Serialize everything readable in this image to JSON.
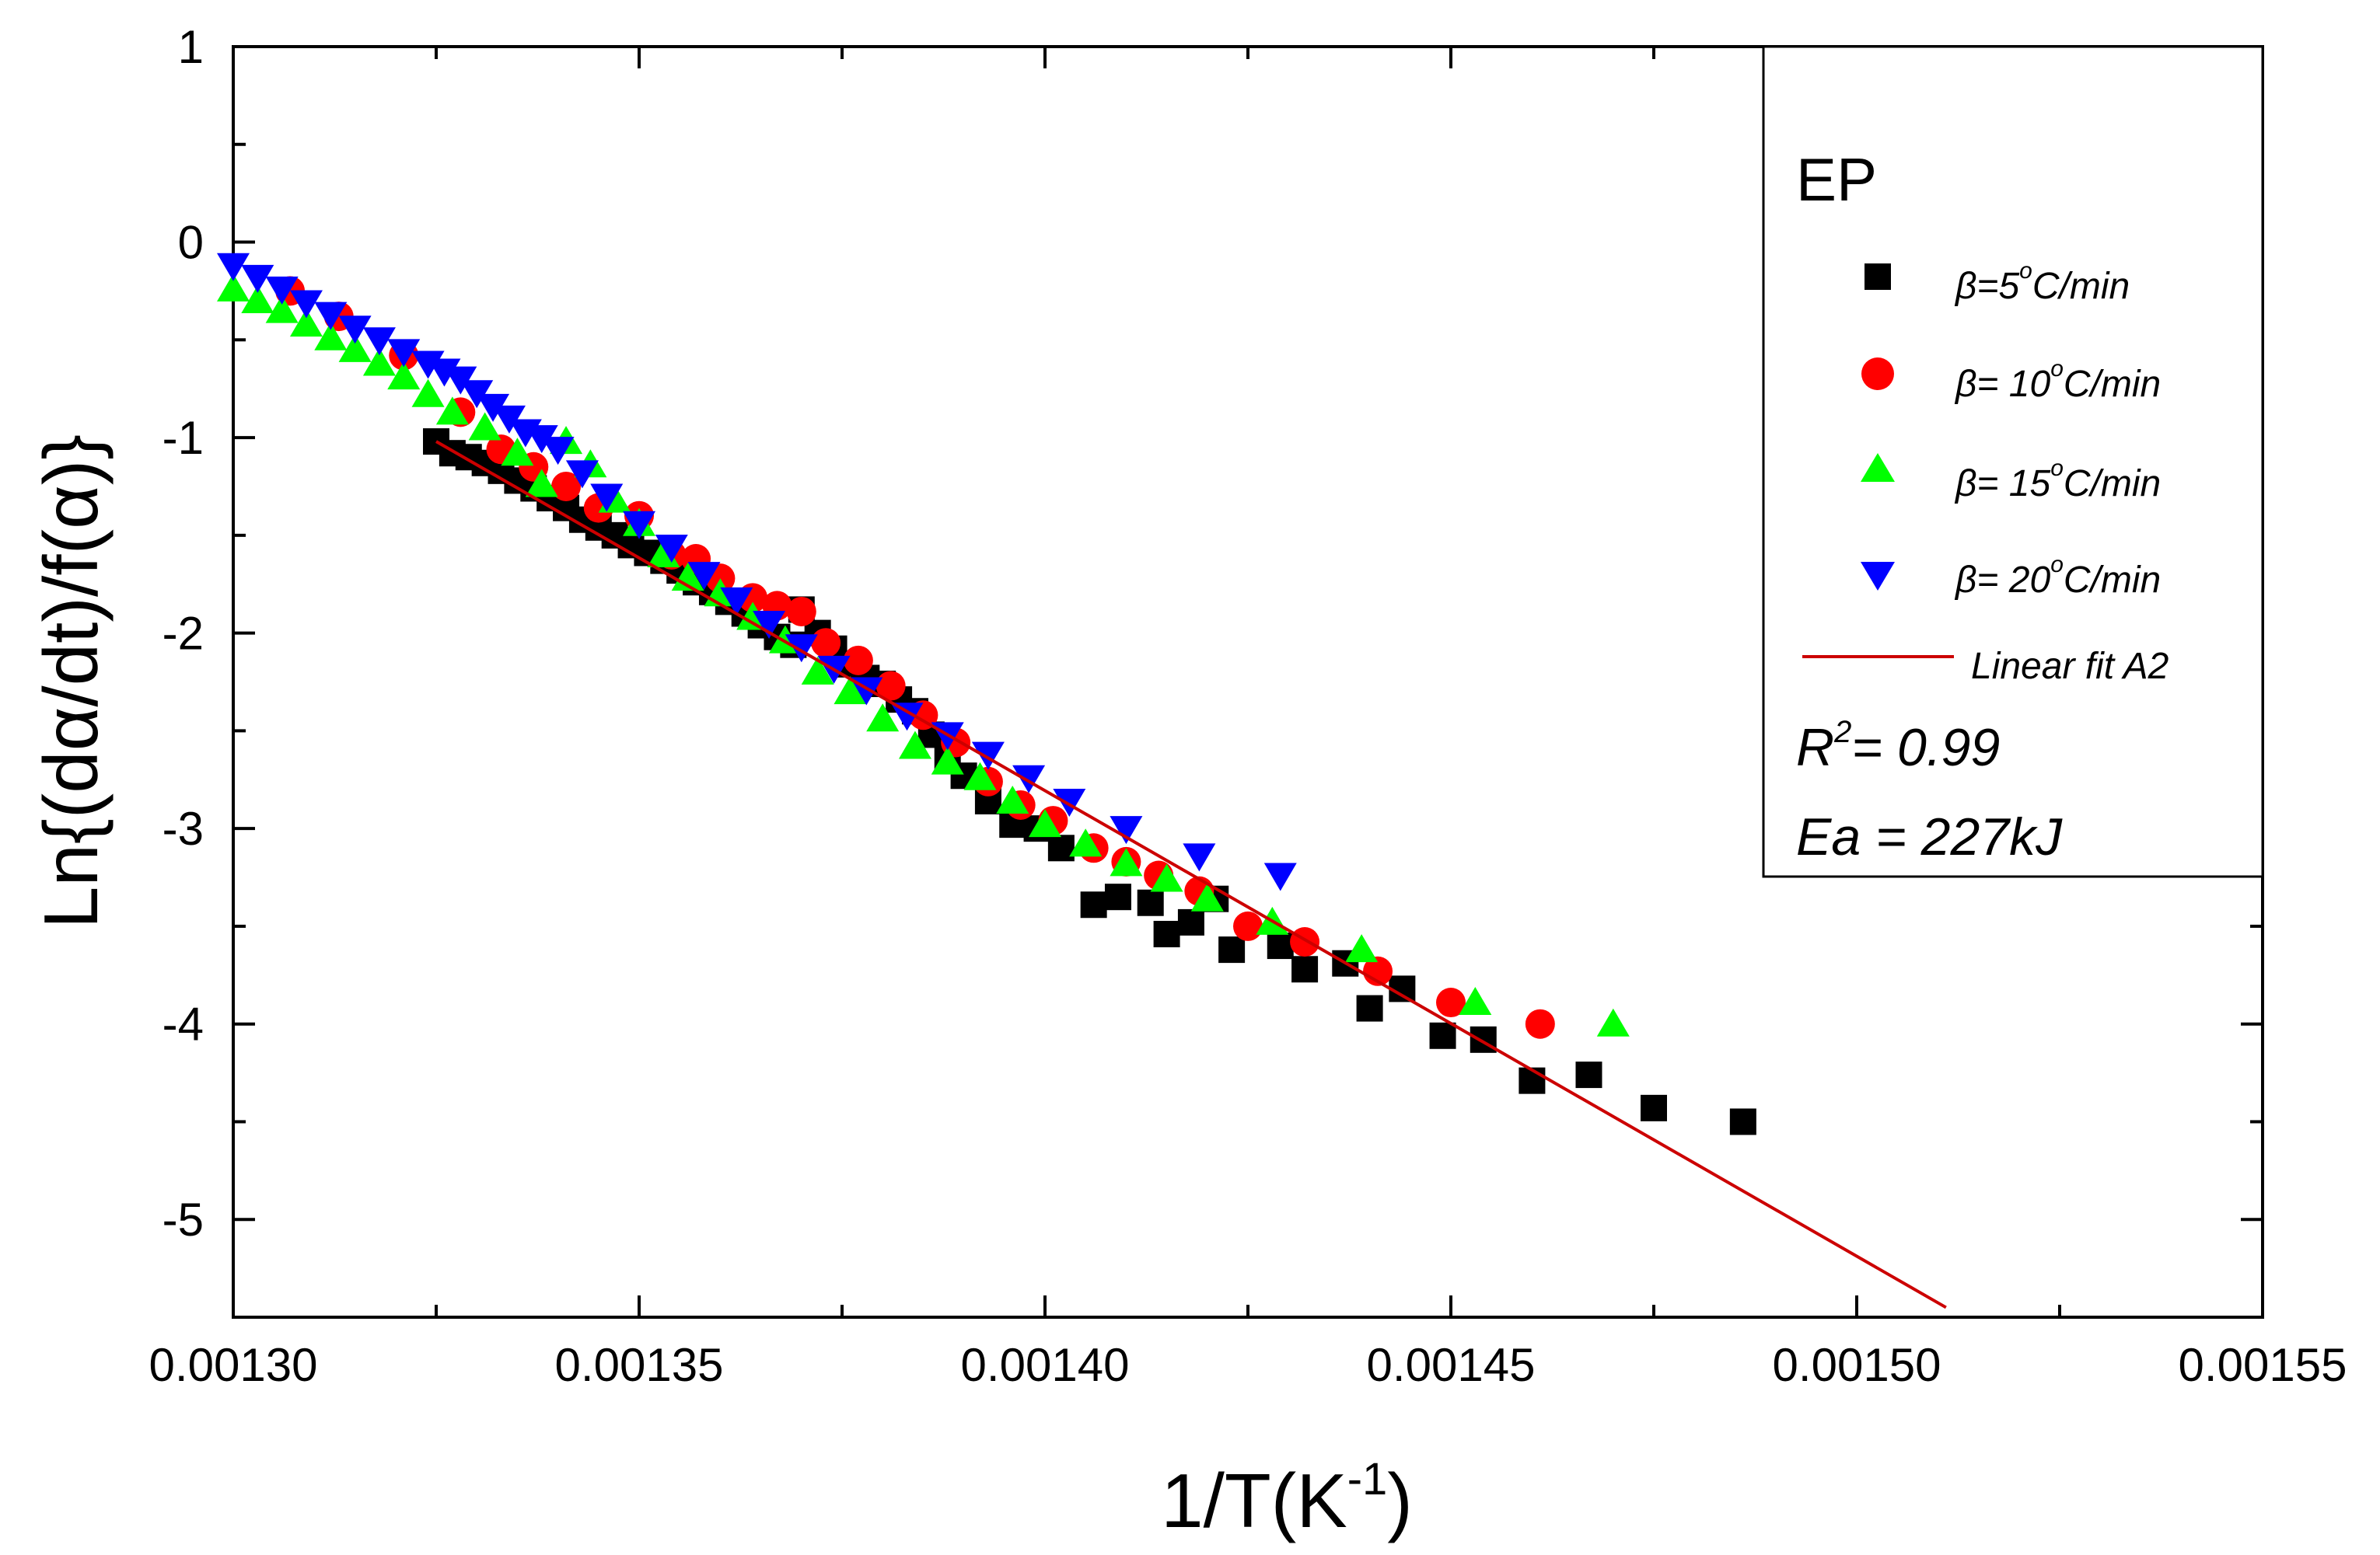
{
  "chart_data": {
    "type": "scatter",
    "title": "",
    "xlabel": "1/T(K",
    "xlabel_sup": "-1",
    "xlabel_close": ")",
    "ylabel": "Ln{(dα/dt)/f(α)}",
    "xlim": [
      0.0013,
      0.00155
    ],
    "ylim": [
      -5.5,
      1
    ],
    "x_ticks": [
      0.0013,
      0.00135,
      0.0014,
      0.00145,
      0.0015,
      0.00155
    ],
    "x_tick_labels": [
      "0.00130",
      "0.00135",
      "0.00140",
      "0.00145",
      "0.00150",
      "0.00155"
    ],
    "y_ticks": [
      1,
      0,
      -1,
      -2,
      -3,
      -4,
      -5
    ],
    "y_tick_labels": [
      "1",
      "0",
      "-1",
      "-2",
      "-3",
      "-4",
      "-5"
    ],
    "legend": {
      "title": "EP",
      "position": "top-right",
      "series_labels": [
        {
          "pre": "β=5",
          "deg": "o",
          "post": "C/min"
        },
        {
          "pre": "β= 10",
          "deg": "o",
          "post": "C/min"
        },
        {
          "pre": "β= 15",
          "deg": "o",
          "post": "C/min"
        },
        {
          "pre": "β= 20",
          "deg": "o",
          "post": "C/min"
        }
      ],
      "fit_label": "Linear fit A2",
      "r2_prefix": "R",
      "r2_sup": "2",
      "r2_value": "= 0.99",
      "ea_text": "Ea = 227kJ"
    },
    "series": [
      {
        "name": "β=5 °C/min",
        "marker": "square",
        "color": "#000000",
        "points": [
          [
            0.001325,
            -1.02
          ],
          [
            0.001327,
            -1.08
          ],
          [
            0.001329,
            -1.1
          ],
          [
            0.001331,
            -1.13
          ],
          [
            0.001333,
            -1.17
          ],
          [
            0.001335,
            -1.22
          ],
          [
            0.001337,
            -1.26
          ],
          [
            0.001339,
            -1.31
          ],
          [
            0.001341,
            -1.36
          ],
          [
            0.001343,
            -1.42
          ],
          [
            0.001345,
            -1.46
          ],
          [
            0.001347,
            -1.5
          ],
          [
            0.001349,
            -1.55
          ],
          [
            0.001351,
            -1.59
          ],
          [
            0.001353,
            -1.63
          ],
          [
            0.001355,
            -1.68
          ],
          [
            0.001357,
            -1.74
          ],
          [
            0.001359,
            -1.79
          ],
          [
            0.001361,
            -1.84
          ],
          [
            0.001363,
            -1.9
          ],
          [
            0.001365,
            -1.96
          ],
          [
            0.001367,
            -2.02
          ],
          [
            0.001369,
            -2.06
          ],
          [
            0.00137,
            -1.88
          ],
          [
            0.001372,
            -2.0
          ],
          [
            0.001374,
            -2.08
          ],
          [
            0.001376,
            -2.16
          ],
          [
            0.001378,
            -2.23
          ],
          [
            0.00138,
            -2.26
          ],
          [
            0.001382,
            -2.34
          ],
          [
            0.001384,
            -2.4
          ],
          [
            0.001386,
            -2.52
          ],
          [
            0.001388,
            -2.63
          ],
          [
            0.00139,
            -2.73
          ],
          [
            0.001393,
            -2.86
          ],
          [
            0.001396,
            -2.98
          ],
          [
            0.001399,
            -3.0
          ],
          [
            0.001402,
            -3.1
          ],
          [
            0.001406,
            -3.39
          ],
          [
            0.001409,
            -3.35
          ],
          [
            0.001413,
            -3.38
          ],
          [
            0.001415,
            -3.54
          ],
          [
            0.001418,
            -3.48
          ],
          [
            0.001421,
            -3.36
          ],
          [
            0.001423,
            -3.62
          ],
          [
            0.001429,
            -3.6
          ],
          [
            0.001432,
            -3.72
          ],
          [
            0.001437,
            -3.69
          ],
          [
            0.00144,
            -3.92
          ],
          [
            0.001444,
            -3.82
          ],
          [
            0.001449,
            -4.06
          ],
          [
            0.001454,
            -4.08
          ],
          [
            0.00146,
            -4.29
          ],
          [
            0.001467,
            -4.26
          ],
          [
            0.001475,
            -4.43
          ],
          [
            0.001486,
            -4.5
          ]
        ]
      },
      {
        "name": "β=10 °C/min",
        "marker": "circle",
        "color": "#ff0000",
        "points": [
          [
            0.001307,
            -0.25
          ],
          [
            0.001313,
            -0.38
          ],
          [
            0.001321,
            -0.58
          ],
          [
            0.001328,
            -0.87
          ],
          [
            0.001333,
            -1.06
          ],
          [
            0.001337,
            -1.15
          ],
          [
            0.001341,
            -1.25
          ],
          [
            0.001345,
            -1.36
          ],
          [
            0.00135,
            -1.4
          ],
          [
            0.001354,
            -1.6
          ],
          [
            0.001357,
            -1.62
          ],
          [
            0.00136,
            -1.72
          ],
          [
            0.001364,
            -1.82
          ],
          [
            0.001367,
            -1.86
          ],
          [
            0.00137,
            -1.89
          ],
          [
            0.001373,
            -2.05
          ],
          [
            0.001377,
            -2.14
          ],
          [
            0.001381,
            -2.27
          ],
          [
            0.001385,
            -2.42
          ],
          [
            0.001389,
            -2.56
          ],
          [
            0.001393,
            -2.76
          ],
          [
            0.001397,
            -2.88
          ],
          [
            0.001401,
            -2.96
          ],
          [
            0.001406,
            -3.1
          ],
          [
            0.00141,
            -3.17
          ],
          [
            0.001414,
            -3.24
          ],
          [
            0.001419,
            -3.32
          ],
          [
            0.001425,
            -3.5
          ],
          [
            0.001432,
            -3.58
          ],
          [
            0.001441,
            -3.73
          ],
          [
            0.00145,
            -3.89
          ],
          [
            0.001461,
            -4.0
          ]
        ]
      },
      {
        "name": "β=15 °C/min",
        "marker": "triangle-up",
        "color": "#00ff00",
        "points": [
          [
            0.0013,
            -0.24
          ],
          [
            0.001303,
            -0.3
          ],
          [
            0.001306,
            -0.35
          ],
          [
            0.001309,
            -0.42
          ],
          [
            0.001312,
            -0.49
          ],
          [
            0.001315,
            -0.55
          ],
          [
            0.001318,
            -0.62
          ],
          [
            0.001321,
            -0.69
          ],
          [
            0.001324,
            -0.78
          ],
          [
            0.001327,
            -0.87
          ],
          [
            0.001331,
            -0.95
          ],
          [
            0.001335,
            -1.08
          ],
          [
            0.001338,
            -1.24
          ],
          [
            0.001341,
            -1.02
          ],
          [
            0.001344,
            -1.14
          ],
          [
            0.001347,
            -1.32
          ],
          [
            0.00135,
            -1.44
          ],
          [
            0.001353,
            -1.6
          ],
          [
            0.001356,
            -1.72
          ],
          [
            0.00136,
            -1.8
          ],
          [
            0.001364,
            -1.92
          ],
          [
            0.001368,
            -2.04
          ],
          [
            0.001372,
            -2.2
          ],
          [
            0.001376,
            -2.3
          ],
          [
            0.00138,
            -2.44
          ],
          [
            0.001384,
            -2.58
          ],
          [
            0.001388,
            -2.66
          ],
          [
            0.001392,
            -2.74
          ],
          [
            0.001396,
            -2.86
          ],
          [
            0.0014,
            -2.98
          ],
          [
            0.001405,
            -3.08
          ],
          [
            0.00141,
            -3.18
          ],
          [
            0.001415,
            -3.26
          ],
          [
            0.00142,
            -3.36
          ],
          [
            0.001428,
            -3.48
          ],
          [
            0.001439,
            -3.62
          ],
          [
            0.001453,
            -3.89
          ],
          [
            0.00147,
            -4.0
          ]
        ]
      },
      {
        "name": "β=20 °C/min",
        "marker": "triangle-down",
        "color": "#0000ff",
        "points": [
          [
            0.0013,
            -0.12
          ],
          [
            0.001303,
            -0.18
          ],
          [
            0.001306,
            -0.24
          ],
          [
            0.001309,
            -0.31
          ],
          [
            0.001312,
            -0.37
          ],
          [
            0.001315,
            -0.44
          ],
          [
            0.001318,
            -0.5
          ],
          [
            0.001321,
            -0.56
          ],
          [
            0.001324,
            -0.62
          ],
          [
            0.001326,
            -0.66
          ],
          [
            0.001328,
            -0.7
          ],
          [
            0.00133,
            -0.77
          ],
          [
            0.001332,
            -0.84
          ],
          [
            0.001334,
            -0.9
          ],
          [
            0.001336,
            -0.97
          ],
          [
            0.001338,
            -1.0
          ],
          [
            0.00134,
            -1.06
          ],
          [
            0.001343,
            -1.18
          ],
          [
            0.001346,
            -1.3
          ],
          [
            0.00135,
            -1.44
          ],
          [
            0.001354,
            -1.56
          ],
          [
            0.001358,
            -1.7
          ],
          [
            0.001362,
            -1.83
          ],
          [
            0.001366,
            -1.95
          ],
          [
            0.00137,
            -2.07
          ],
          [
            0.001374,
            -2.18
          ],
          [
            0.001378,
            -2.29
          ],
          [
            0.001383,
            -2.42
          ],
          [
            0.001388,
            -2.52
          ],
          [
            0.001393,
            -2.62
          ],
          [
            0.001398,
            -2.74
          ],
          [
            0.001403,
            -2.86
          ],
          [
            0.00141,
            -3.0
          ],
          [
            0.001419,
            -3.14
          ],
          [
            0.001429,
            -3.24
          ]
        ]
      }
    ],
    "fit_line": {
      "name": "Linear fit A2",
      "color": "#cc0000",
      "x": [
        0.001325,
        0.001511
      ],
      "y": [
        -1.02,
        -5.45
      ]
    }
  }
}
